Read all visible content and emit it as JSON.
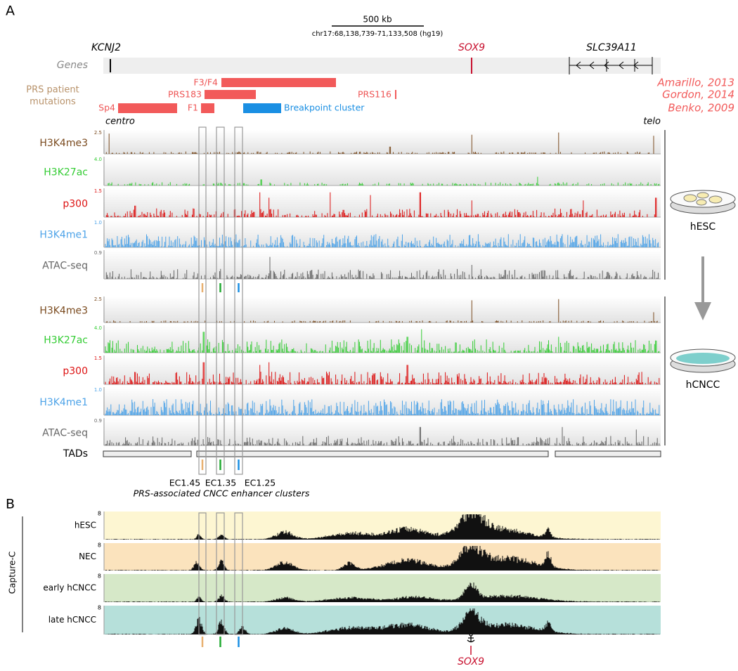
{
  "panels": {
    "a": "A",
    "b": "B"
  },
  "scale": {
    "label": "500 kb",
    "coords": "chr17:68,138,739-71,133,508 (hg19)"
  },
  "genes": {
    "track_label": "Genes",
    "names": [
      "KCNJ2",
      "SOX9",
      "SLC39A11"
    ]
  },
  "mutations": {
    "label": [
      "PRS patient",
      "mutations"
    ],
    "items": [
      "F3/F4",
      "PRS183",
      "PRS116",
      "Sp4",
      "F1"
    ],
    "breakpoint": "Breakpoint cluster",
    "citations": [
      "Amarillo, 2013",
      "Gordon, 2014",
      "Benko, 2009"
    ]
  },
  "orientation": [
    "centro",
    "telo"
  ],
  "hesc": {
    "label": "hESC",
    "tracks": [
      {
        "name": "H3K4me3",
        "max": "2.5"
      },
      {
        "name": "H3K27ac",
        "max": "4.0"
      },
      {
        "name": "p300",
        "max": "1.5"
      },
      {
        "name": "H3K4me1",
        "max": "1.0"
      },
      {
        "name": "ATAC-seq",
        "max": "0.9"
      }
    ]
  },
  "hcncc": {
    "label": "hCNCC",
    "tracks": [
      {
        "name": "H3K4me3",
        "max": "2.5"
      },
      {
        "name": "H3K27ac",
        "max": "4.0"
      },
      {
        "name": "p300",
        "max": "1.5"
      },
      {
        "name": "H3K4me1",
        "max": "1.0"
      },
      {
        "name": "ATAC-seq",
        "max": "0.9"
      }
    ]
  },
  "tads": "TADs",
  "enhancers": {
    "names": [
      "EC1.45",
      "EC1.35",
      "EC1.25"
    ],
    "caption": "PRS-associated CNCC enhancer clusters"
  },
  "capture": {
    "label": "Capture-C",
    "max": "8",
    "samples": [
      "hESC",
      "NEC",
      "early hCNCC",
      "late hCNCC"
    ]
  },
  "anchor_gene": "SOX9"
}
